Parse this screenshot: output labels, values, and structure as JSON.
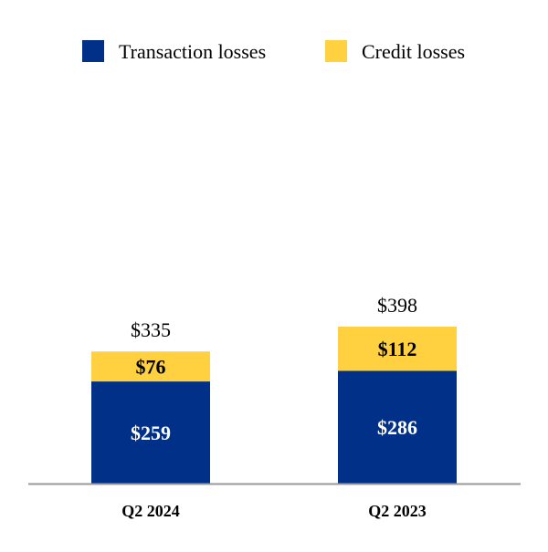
{
  "chart_data": {
    "type": "bar",
    "stacked": true,
    "title": "",
    "xlabel": "",
    "ylabel": "",
    "grid": false,
    "legend_position": "top",
    "value_prefix": "$",
    "ylim": [
      0,
      398
    ],
    "categories": [
      "Q2 2024",
      "Q2 2023"
    ],
    "series": [
      {
        "name": "Transaction losses",
        "color": "#003087",
        "label_color": "#ffffff",
        "values": [
          259,
          286
        ]
      },
      {
        "name": "Credit losses",
        "color": "#FFD140",
        "label_color": "#000000",
        "values": [
          76,
          112
        ]
      }
    ],
    "totals": [
      335,
      398
    ],
    "axis_color": "#999999"
  }
}
